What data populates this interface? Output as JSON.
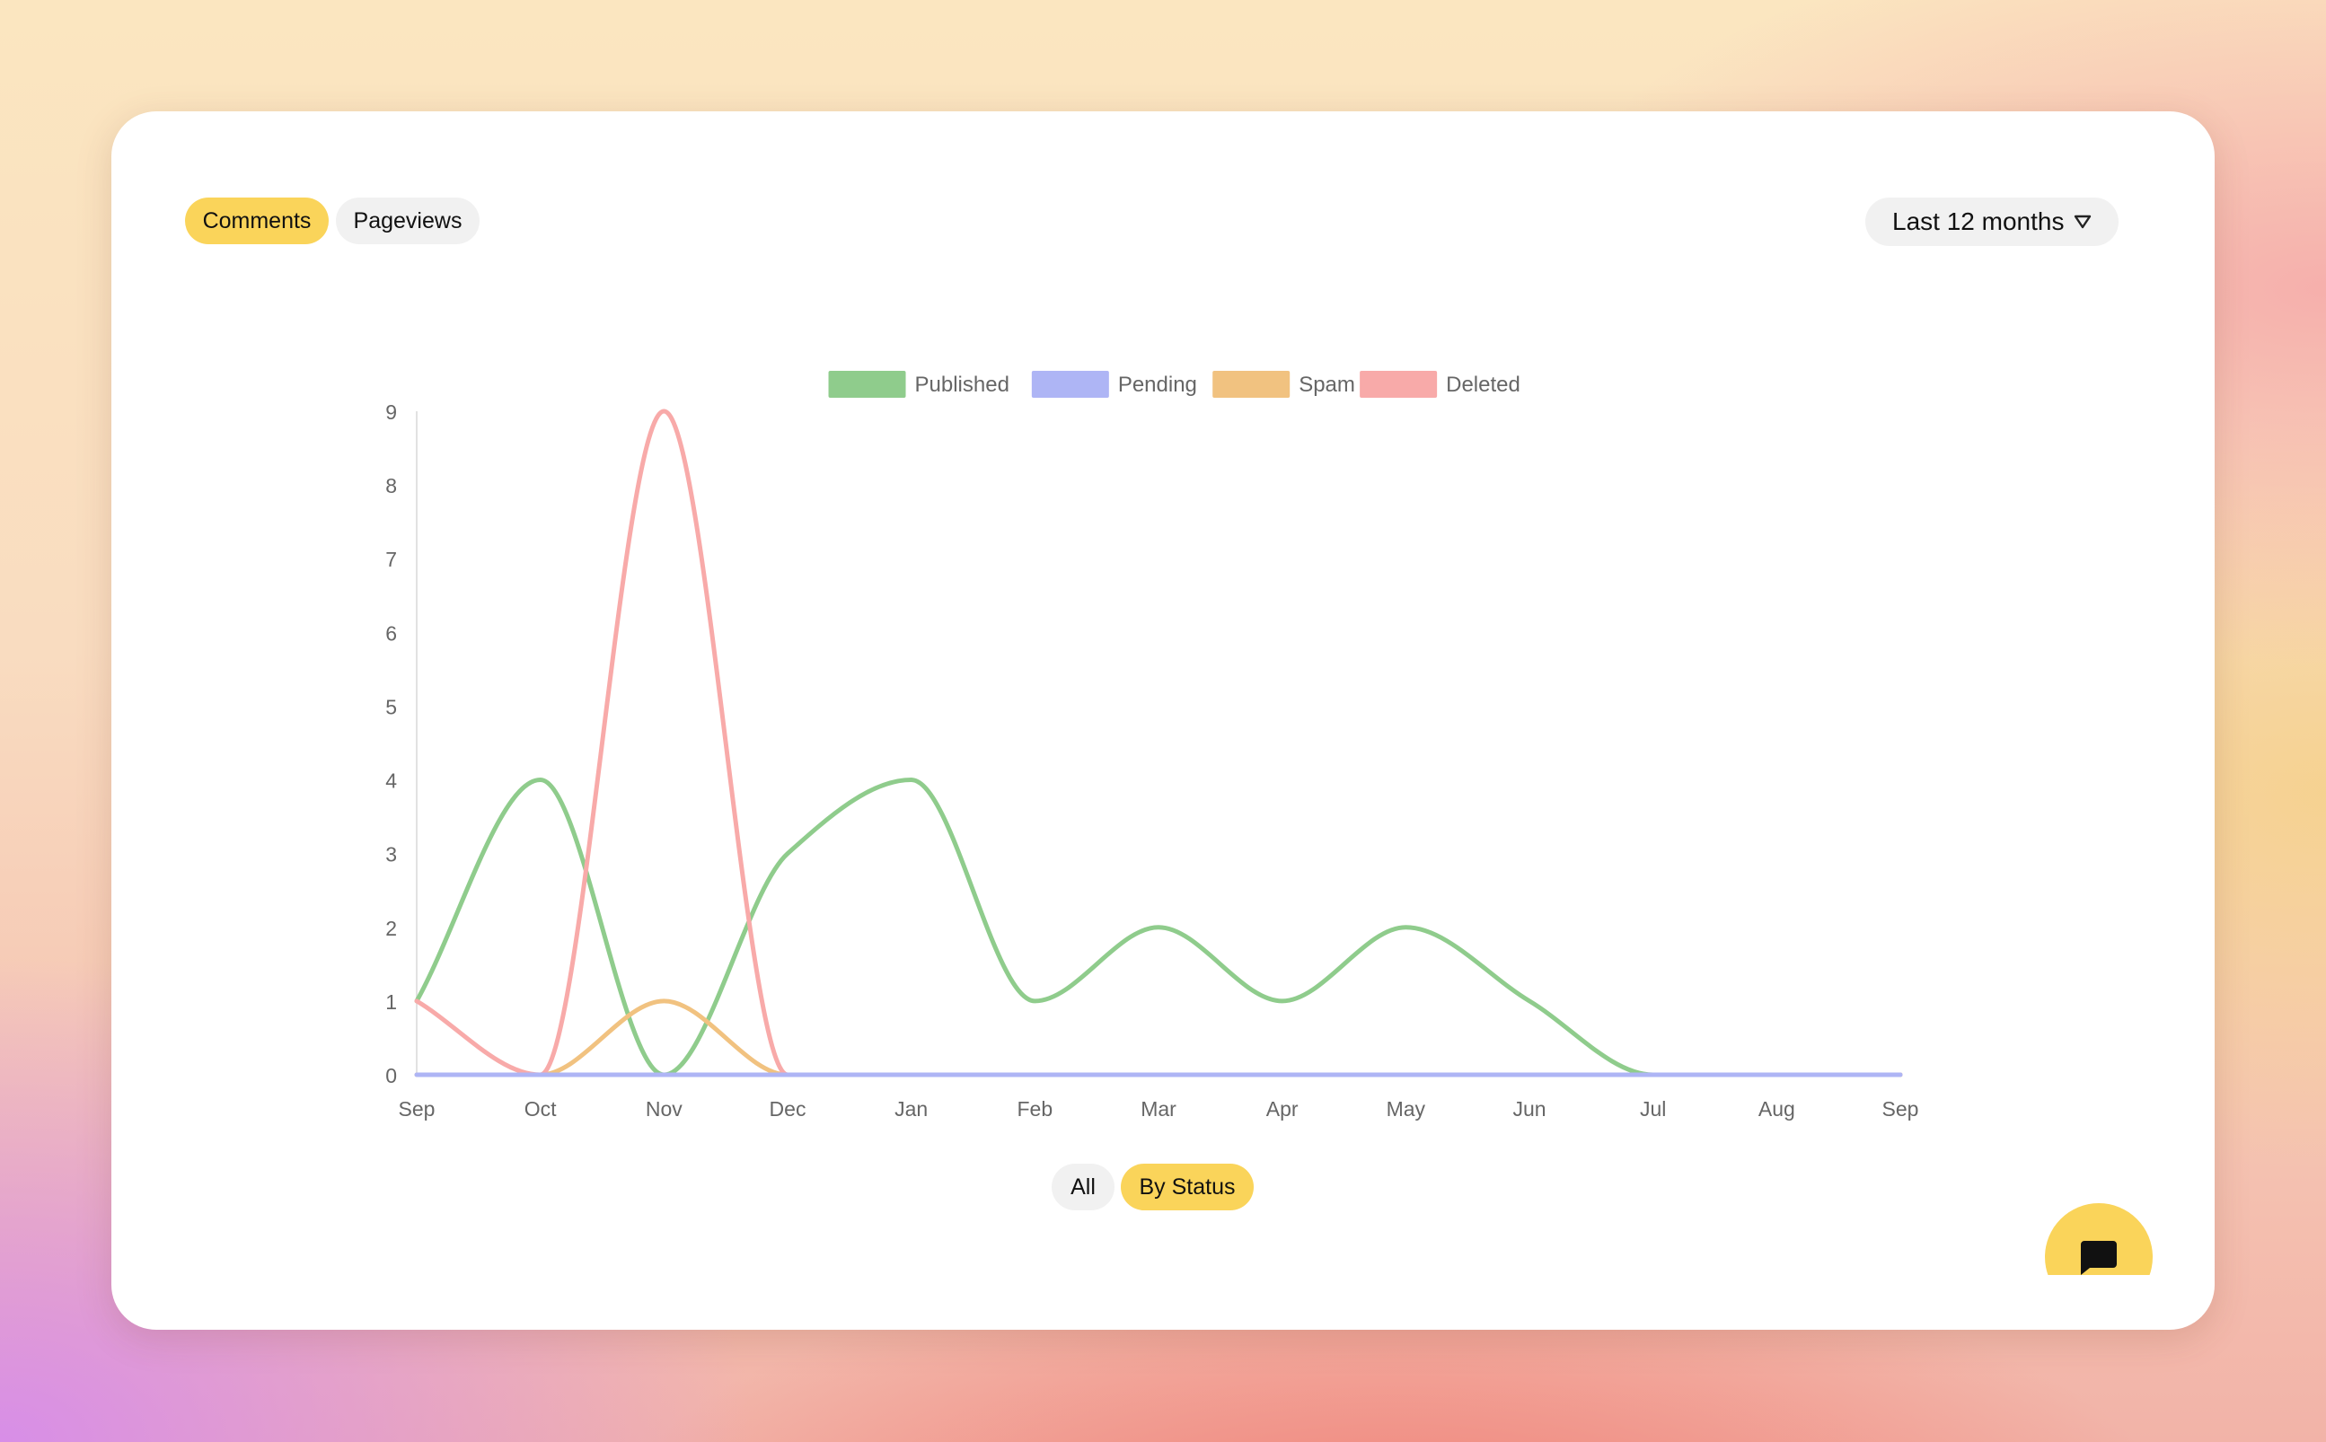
{
  "tabs": {
    "comments": "Comments",
    "pageviews": "Pageviews",
    "active": "comments"
  },
  "range_select": {
    "value": "Last 12 months",
    "icon": "chevron-down-triangle-icon"
  },
  "mode_toggle": {
    "all": "All",
    "by_status": "By Status",
    "active": "by_status"
  },
  "chat_button": {
    "icon": "chat-bubble-icon"
  },
  "colors": {
    "accent": "#fad45a",
    "published": "#8fcc8c",
    "pending": "#aeb5f5",
    "spam": "#f1c280",
    "deleted": "#f8aaa9"
  },
  "chart_data": {
    "type": "line",
    "categories": [
      "Sep",
      "Oct",
      "Nov",
      "Dec",
      "Jan",
      "Feb",
      "Mar",
      "Apr",
      "May",
      "Jun",
      "Jul",
      "Aug",
      "Sep"
    ],
    "yticks": [
      "0",
      "1",
      "2",
      "3",
      "4",
      "5",
      "6",
      "7",
      "8",
      "9"
    ],
    "ylim": [
      0,
      9
    ],
    "legend_position": "top-center",
    "grid": false,
    "series": [
      {
        "name": "Published",
        "color": "#8fcc8c",
        "values": [
          1,
          4,
          0,
          3,
          4,
          1,
          2,
          1,
          2,
          1,
          0,
          0,
          0
        ]
      },
      {
        "name": "Pending",
        "color": "#aeb5f5",
        "values": [
          0,
          0,
          0,
          0,
          0,
          0,
          0,
          0,
          0,
          0,
          0,
          0,
          0
        ]
      },
      {
        "name": "Spam",
        "color": "#f1c280",
        "values": [
          0,
          0,
          1,
          0,
          0,
          0,
          0,
          0,
          0,
          0,
          0,
          0,
          0
        ]
      },
      {
        "name": "Deleted",
        "color": "#f8aaa9",
        "values": [
          1,
          0,
          9,
          0,
          0,
          0,
          0,
          0,
          0,
          0,
          0,
          0,
          0
        ]
      }
    ]
  }
}
